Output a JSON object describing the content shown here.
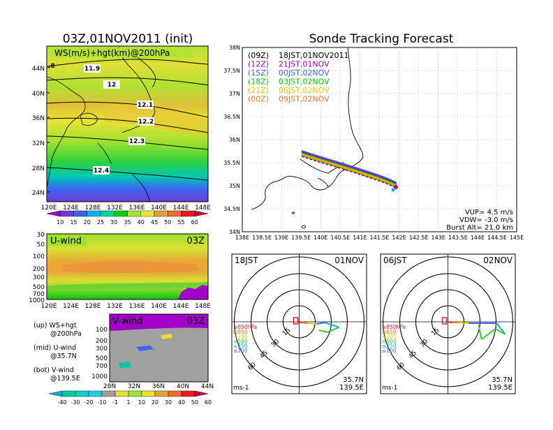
{
  "left": {
    "title": "03Z,01NOV2011 (init)",
    "map_label": "WS(m/s)+hgt(km)@200hPa",
    "lat_ticks": [
      "44N",
      "40N",
      "36N",
      "32N",
      "28N",
      "24N"
    ],
    "lon_ticks": [
      "120E",
      "124E",
      "128E",
      "132E",
      "136E",
      "140E",
      "144E",
      "148E"
    ],
    "contours": [
      "11.9",
      "12",
      "12.1",
      "12.2",
      "12.3",
      "12.4"
    ],
    "corner_value": ".8",
    "ws_scale": [
      "10",
      "15",
      "20",
      "25",
      "30",
      "35",
      "40",
      "45",
      "50",
      "55",
      "60"
    ],
    "ws_colors": [
      "#a000c8",
      "#6e3cd2",
      "#3c64f0",
      "#00b4f0",
      "#00d2a0",
      "#00d200",
      "#a0e632",
      "#e6e632",
      "#e6a032",
      "#f06e28",
      "#e61e1e",
      "#c8003c"
    ],
    "uwind": {
      "label": "U-wind",
      "time": "03Z",
      "levels": [
        "30",
        "50",
        "100",
        "200",
        "300",
        "500",
        "700",
        "1000"
      ]
    },
    "vwind": {
      "label": "V-wind",
      "time": "03Z",
      "levels": [
        "100",
        "200",
        "300",
        "500",
        "700",
        "1000"
      ],
      "lat_ticks": [
        "28N",
        "32N",
        "36N",
        "40N",
        "44N"
      ]
    },
    "legend": [
      {
        "a": "(up) WS+hgt",
        "b": "@200hPa"
      },
      {
        "a": "(mid) U-wind",
        "b": "@35.7N"
      },
      {
        "a": "(bot) V-wind",
        "b": "@139.5E"
      }
    ],
    "v_scale": [
      "-40",
      "-30",
      "-20",
      "-10",
      "-1",
      "1",
      "10",
      "20",
      "30",
      "40",
      "50",
      "60"
    ],
    "v_colors": [
      "#00b4c8",
      "#00c8a0",
      "#00d2c8",
      "#28c8f0",
      "#a0a0a0",
      "#e6dc32",
      "#a0e632",
      "#e6e632",
      "#e6a032",
      "#f06e28",
      "#e61e1e",
      "#c8003c"
    ]
  },
  "tracker": {
    "title": "Sonde Tracking Forecast",
    "lat_ticks": [
      "38N",
      "37.5N",
      "37N",
      "36.5N",
      "36N",
      "35.5N",
      "35N",
      "34.5N",
      "34N"
    ],
    "lon_ticks": [
      "138E",
      "138.5E",
      "139E",
      "139.5E",
      "140E",
      "140.5E",
      "141E",
      "141.5E",
      "142E",
      "142.5E",
      "143E",
      "143.5E",
      "144E",
      "144.5E",
      "145E"
    ],
    "legend": [
      {
        "code": "(09Z)",
        "time": "18JST,01NOV2011",
        "color": "#000000"
      },
      {
        "code": "(12Z)",
        "time": "21JST,01NOV",
        "color": "#a000c8"
      },
      {
        "code": "(15Z)",
        "time": "00JST,02NOV",
        "color": "#3c64f0"
      },
      {
        "code": "(18Z)",
        "time": "03JST,02NOV",
        "color": "#00c800"
      },
      {
        "code": "(21Z)",
        "time": "06JST,02NOV",
        "color": "#e6c800"
      },
      {
        "code": "(00Z)",
        "time": "09JST,02NOV",
        "color": "#e67828"
      }
    ],
    "params": [
      "VUP= 4.5 m/s",
      "VDW= -3.0 m/s",
      "Burst Alt= 21.0 km"
    ]
  },
  "hodographs": [
    {
      "time": "18JST",
      "date": "01NOV"
    },
    {
      "time": "06JST",
      "date": "02NOV"
    }
  ],
  "hodo_common": {
    "rings": [
      "15",
      "30",
      "45",
      "60"
    ],
    "levels": [
      "≥850hPa",
      "≤850",
      "≤700",
      "≤500",
      "≤250",
      "≤100"
    ],
    "level_colors": [
      "#e61e1e",
      "#e67828",
      "#e6c800",
      "#32c832",
      "#00b4d2",
      "#3c64f0"
    ],
    "unit": "ms-1",
    "lat": "35.7N",
    "lon": "139.5E"
  }
}
